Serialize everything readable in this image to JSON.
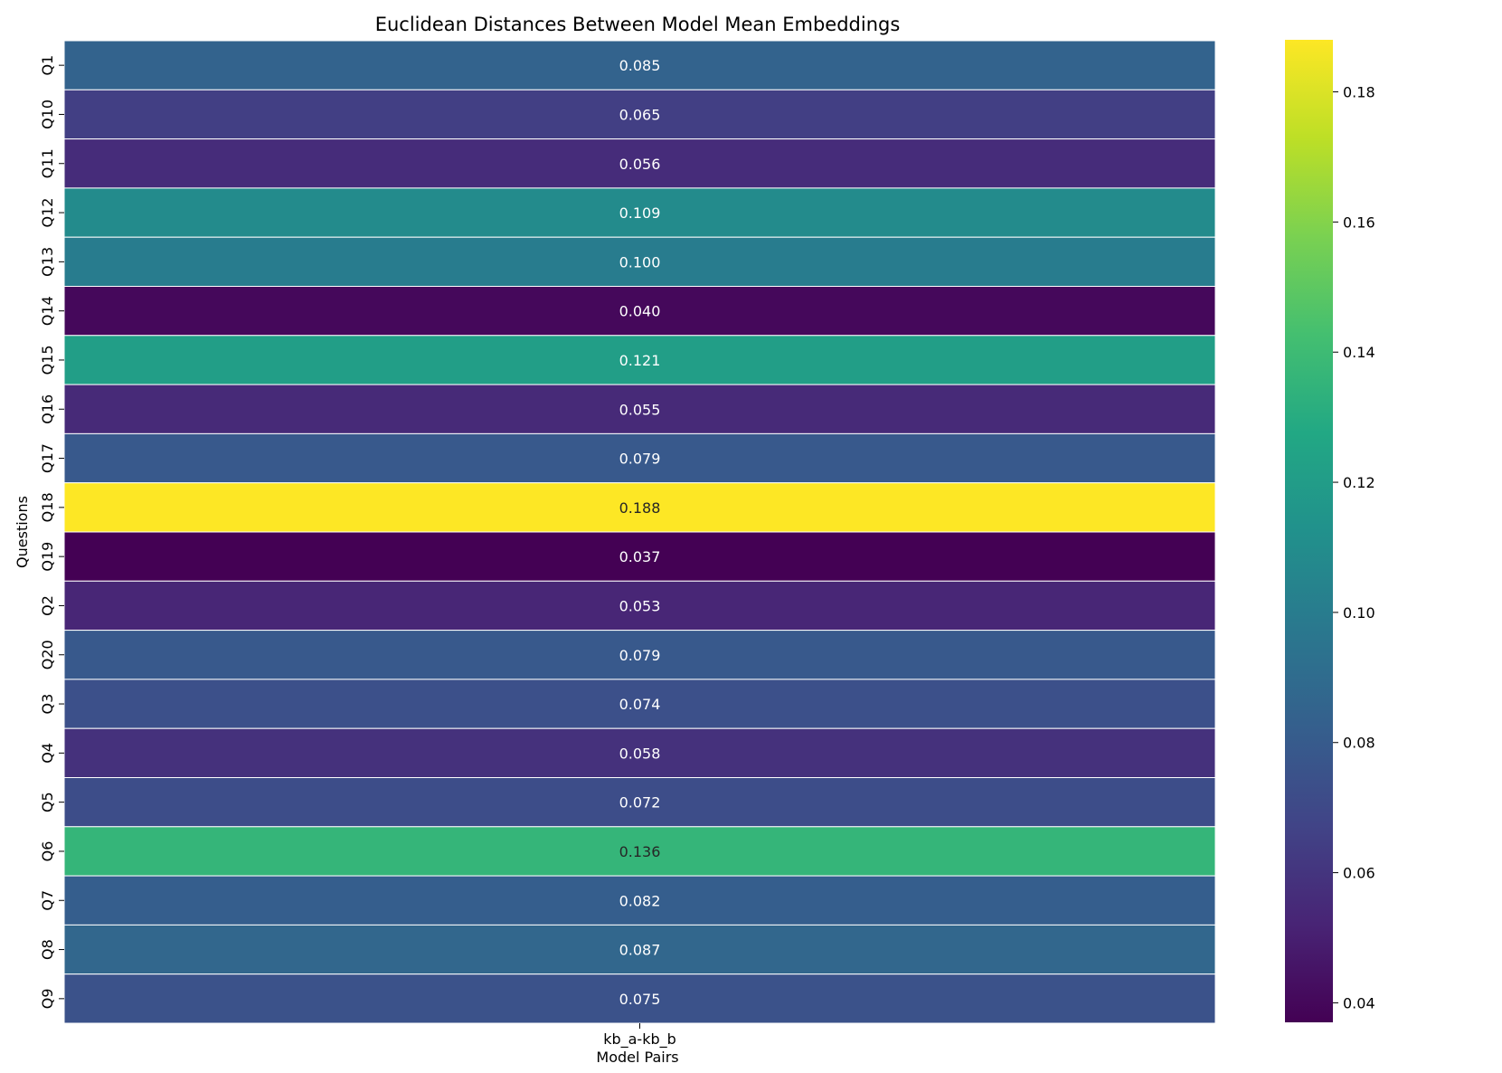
{
  "chart_data": {
    "type": "heatmap",
    "title": "Euclidean Distances Between Model Mean Embeddings",
    "xlabel": "Model Pairs",
    "ylabel": "Questions",
    "columns": [
      "kb_a-kb_b"
    ],
    "rows": [
      "Q1",
      "Q10",
      "Q11",
      "Q12",
      "Q13",
      "Q14",
      "Q15",
      "Q16",
      "Q17",
      "Q18",
      "Q19",
      "Q2",
      "Q20",
      "Q3",
      "Q4",
      "Q5",
      "Q6",
      "Q7",
      "Q8",
      "Q9"
    ],
    "values": [
      0.085,
      0.065,
      0.056,
      0.109,
      0.1,
      0.04,
      0.121,
      0.055,
      0.079,
      0.188,
      0.037,
      0.053,
      0.079,
      0.074,
      0.058,
      0.072,
      0.136,
      0.082,
      0.087,
      0.075
    ],
    "value_labels": [
      "0.085",
      "0.065",
      "0.056",
      "0.109",
      "0.100",
      "0.040",
      "0.121",
      "0.055",
      "0.079",
      "0.188",
      "0.037",
      "0.053",
      "0.079",
      "0.074",
      "0.058",
      "0.072",
      "0.136",
      "0.082",
      "0.087",
      "0.075"
    ],
    "colormap": "viridis",
    "colorbar": {
      "vmin": 0.037,
      "vmax": 0.188,
      "ticks": [
        0.04,
        0.06,
        0.08,
        0.1,
        0.12,
        0.14,
        0.16,
        0.18
      ],
      "tick_labels": [
        "0.04",
        "0.06",
        "0.08",
        "0.10",
        "0.12",
        "0.14",
        "0.16",
        "0.18"
      ]
    },
    "cell_border_color": "#ffffff",
    "grid": false
  }
}
